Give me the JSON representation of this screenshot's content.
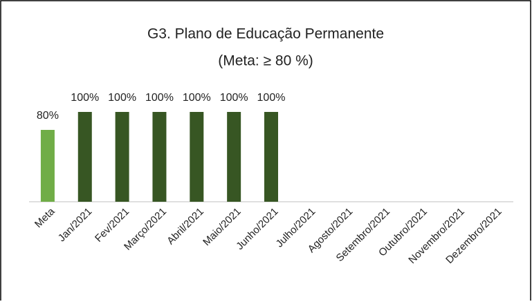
{
  "chart_data": {
    "type": "bar",
    "title": "G3. Plano de Educação Permanente",
    "subtitle": "(Meta: ≥ 80 %)",
    "categories": [
      "Meta",
      "Jan/2021",
      "Fev/2021",
      "Março/2021",
      "Abril/2021",
      "Maio/2021",
      "Junho/2021",
      "Julho/2021",
      "Agosto/2021",
      "Setembro/2021",
      "Outubro/2021",
      "Novembro/2021",
      "Dezembro/2021"
    ],
    "values": [
      80,
      100,
      100,
      100,
      100,
      100,
      100,
      null,
      null,
      null,
      null,
      null,
      null
    ],
    "value_labels": [
      "80%",
      "100%",
      "100%",
      "100%",
      "100%",
      "100%",
      "100%",
      null,
      null,
      null,
      null,
      null,
      null
    ],
    "colors": [
      "#70ad47",
      "#375623",
      "#375623",
      "#375623",
      "#375623",
      "#375623",
      "#375623",
      "#375623",
      "#375623",
      "#375623",
      "#375623",
      "#375623",
      "#375623"
    ],
    "ylim": [
      0,
      100
    ]
  }
}
